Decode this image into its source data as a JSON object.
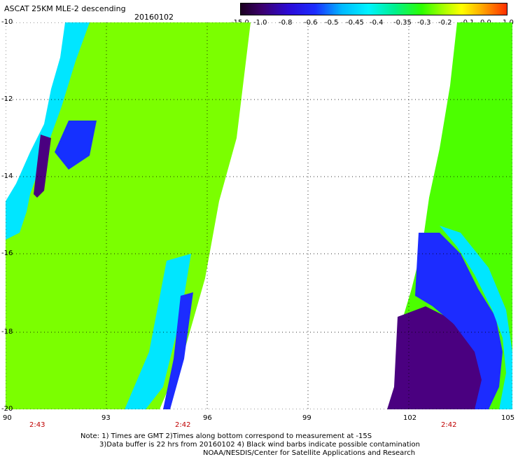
{
  "title": "ASCAT 25KM MLE-2 descending",
  "date": "20160102",
  "colorbar": {
    "labels": [
      "-15.0",
      "-1.0",
      "-0.8",
      "-0.6",
      "-0.5",
      "-0.45",
      "-0.4",
      "-0.35",
      "-0.3",
      "-0.2",
      "-0.1",
      "0.0",
      "1.0"
    ]
  },
  "axes": {
    "lat_labels": [
      "-10",
      "-12",
      "-14",
      "-16",
      "-18",
      "-20"
    ],
    "lon_labels": [
      "90",
      "93",
      "96",
      "99",
      "102",
      "105"
    ],
    "time_labels": [
      "2:43",
      "2:42",
      "2:42"
    ]
  },
  "footer": {
    "line1": "Note: 1) Times are GMT 2)Times along bottom correspond to measurement at -15S",
    "line2": "3)Data buffer is 22 hrs from 20160102 4) Black wind barbs indicate possible contamination",
    "line3": "NOAA/NESDIS/Center for Satellite Applications and Research"
  }
}
